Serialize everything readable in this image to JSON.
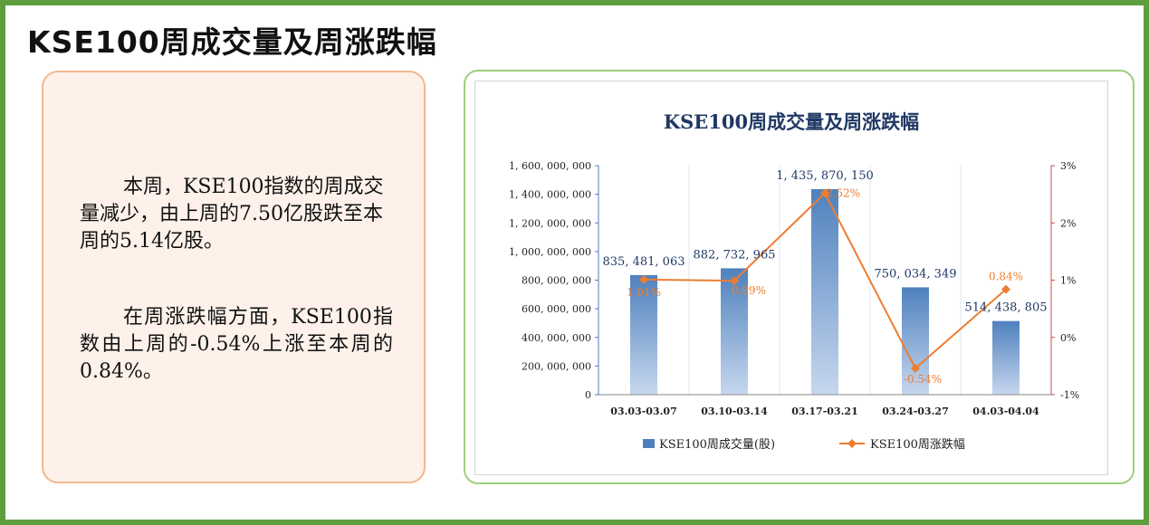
{
  "page": {
    "title": "KSE100周成交量及周涨跌幅"
  },
  "summary": {
    "paragraph1": "本周，KSE100指数的周成交量减少，由上周的7.50亿股跌至本周的5.14亿股。",
    "paragraph2": "在周涨跌幅方面，KSE100指数由上周的-0.54%上涨至本周的0.84%。"
  },
  "colors": {
    "frame": "#5e9e3e",
    "bar": "#4f81bd",
    "line": "#ed7d31",
    "right_axis": "#c0504d"
  },
  "chart_data": {
    "type": "bar",
    "title": "KSE100周成交量及周涨跌幅",
    "categories": [
      "03.03-03.07",
      "03.10-03.14",
      "03.17-03.21",
      "03.24-03.27",
      "04.03-04.04"
    ],
    "series": [
      {
        "name": "KSE100周成交量(股)",
        "type": "bar",
        "axis": "left",
        "values": [
          835481063,
          882732965,
          1435870150,
          750034349,
          514438805
        ],
        "labels": [
          "835, 481, 063",
          "882, 732, 965",
          "1, 435, 870, 150",
          "750, 034, 349",
          "514, 438, 805"
        ]
      },
      {
        "name": "KSE100周涨跌幅",
        "type": "line",
        "axis": "right",
        "values": [
          1.01,
          0.99,
          2.52,
          -0.54,
          0.84
        ],
        "labels": [
          "1.01%",
          "0.99%",
          "2.52%",
          "-0.54%",
          "0.84%"
        ]
      }
    ],
    "left_axis": {
      "ylim": [
        0,
        1600000000
      ],
      "ticks": [
        0,
        200000000,
        400000000,
        600000000,
        800000000,
        1000000000,
        1200000000,
        1400000000,
        1600000000
      ],
      "tick_labels": [
        "0",
        "200, 000, 000",
        "400, 000, 000",
        "600, 000, 000",
        "800, 000, 000",
        "1, 000, 000, 000",
        "1, 200, 000, 000",
        "1, 400, 000, 000",
        "1, 600, 000, 000"
      ]
    },
    "right_axis": {
      "ylim": [
        -1,
        3
      ],
      "ticks": [
        -1,
        0,
        1,
        2,
        3
      ],
      "tick_labels": [
        "-1%",
        "0%",
        "1%",
        "2%",
        "3%"
      ]
    },
    "legend_position": "bottom",
    "grid": "vertical"
  }
}
